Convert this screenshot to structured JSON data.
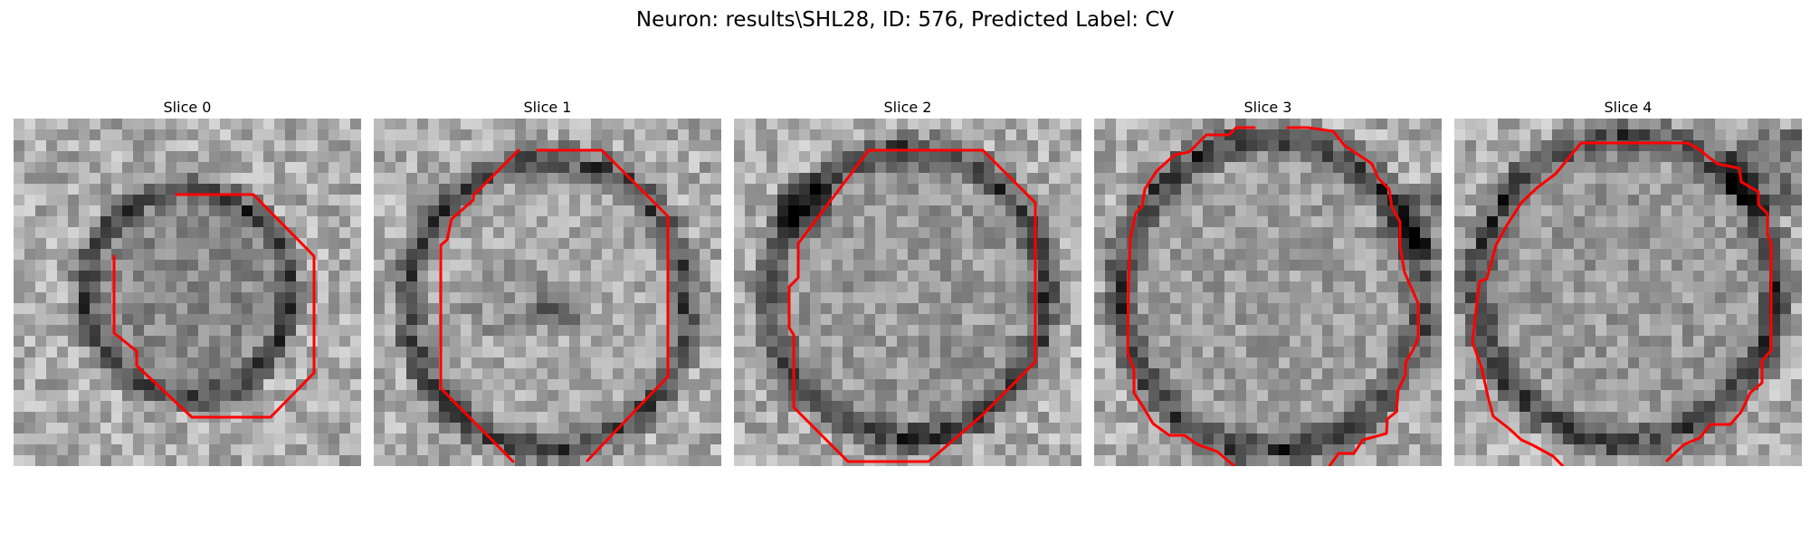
{
  "figure": {
    "title": "Neuron: results\\SHL28, ID: 576, Predicted Label: CV"
  },
  "slices": [
    {
      "label": "Slice 0",
      "image_description": "grayscale microscopy patch containing a roughly circular neuron outlined in red",
      "overlay_color": "#ff0000"
    },
    {
      "label": "Slice 1",
      "image_description": "grayscale microscopy patch containing a roughly circular neuron outlined in red",
      "overlay_color": "#ff0000"
    },
    {
      "label": "Slice 2",
      "image_description": "grayscale microscopy patch containing a roughly circular neuron outlined in red",
      "overlay_color": "#ff0000"
    },
    {
      "label": "Slice 3",
      "image_description": "grayscale microscopy patch containing a roughly circular neuron outlined in red",
      "overlay_color": "#ff0000"
    },
    {
      "label": "Slice 4",
      "image_description": "grayscale microscopy patch containing a roughly circular neuron outlined in red",
      "overlay_color": "#ff0000"
    }
  ]
}
